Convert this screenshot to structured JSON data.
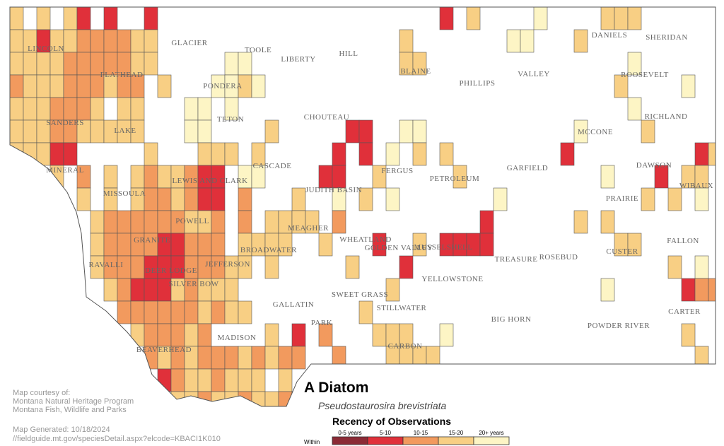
{
  "map": {
    "counties": [
      "LINCOLN",
      "FLATHEAD",
      "GLACIER",
      "TOOLE",
      "LIBERTY",
      "HILL",
      "BLAINE",
      "PHILLIPS",
      "VALLEY",
      "DANIELS",
      "SHERIDAN",
      "ROOSEVELT",
      "PONDERA",
      "TETON",
      "CHOUTEAU",
      "SANDERS",
      "LAKE",
      "MCCONE",
      "RICHLAND",
      "MINERAL",
      "CASCADE",
      "FERGUS",
      "PETROLEUM",
      "GARFIELD",
      "DAWSON",
      "MISSOULA",
      "LEWIS AND CLARK",
      "JUDITH BASIN",
      "PRAIRIE",
      "WIBAUX",
      "POWELL",
      "MEAGHER",
      "WHEATLAND",
      "GOLDEN VALLEY",
      "MUSSELSHELL",
      "GRANITE",
      "RAVALLI",
      "DEER LODGE",
      "JEFFERSON",
      "BROADWATER",
      "ROSEBUD",
      "TREASURE",
      "CUSTER",
      "FALLON",
      "SILVER BOW",
      "YELLOWSTONE",
      "SWEET GRASS",
      "STILLWATER",
      "PARK",
      "GALLATIN",
      "CARTER",
      "BIG HORN",
      "POWDER RIVER",
      "MADISON",
      "CARBON",
      "BEAVERHEAD"
    ]
  },
  "title": "A Diatom",
  "scientific_name": "Pseudostaurosira brevistriata",
  "legend": {
    "title": "Recency of Observations",
    "prefix": "Within",
    "classes": [
      {
        "label": "0-5 years",
        "color": "#8b2a35"
      },
      {
        "label": "5-10",
        "color": "#e0303a"
      },
      {
        "label": "10-15",
        "color": "#f29a5e"
      },
      {
        "label": "15-20",
        "color": "#f8cf84"
      },
      {
        "label": "20+ years",
        "color": "#fdf5c5"
      }
    ]
  },
  "credits": {
    "courtesy": "Map courtesy of:",
    "org1": "Montana Natural Heritage Program",
    "org2": "Montana Fish, Wildlife and Parks",
    "generated": "Map Generated: 10/18/2024",
    "url": "//fieldguide.mt.gov/speciesDetail.aspx?elcode=KBACI1K010"
  }
}
